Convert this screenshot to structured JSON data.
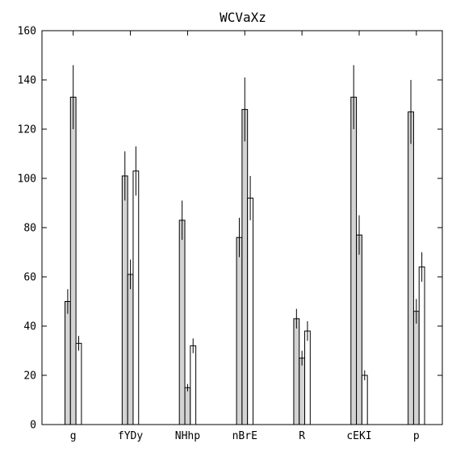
{
  "chart_data": {
    "type": "bar",
    "title": "WCVaXz",
    "xlabel": "",
    "ylabel": "",
    "ylim": [
      0,
      160
    ],
    "yticks": [
      0,
      20,
      40,
      60,
      80,
      100,
      120,
      140,
      160
    ],
    "categories": [
      "g",
      "fYDy",
      "NHhp",
      "nBrE",
      "R",
      "cEKI",
      "p"
    ],
    "grid": false,
    "series": [
      {
        "color": "#d3d3d3",
        "values": [
          50,
          101,
          83,
          76,
          43,
          133,
          127
        ],
        "errors": [
          5,
          10,
          8,
          8,
          4,
          13,
          13
        ]
      },
      {
        "color": "#d3d3d3",
        "values": [
          133,
          61,
          15,
          128,
          27,
          77,
          46
        ],
        "errors": [
          13,
          6,
          1.5,
          13,
          3,
          8,
          5
        ]
      },
      {
        "color": "#ffffff",
        "values": [
          33,
          103,
          32,
          92,
          38,
          20,
          64
        ],
        "errors": [
          3,
          10,
          3,
          9,
          4,
          2,
          6
        ]
      }
    ]
  }
}
